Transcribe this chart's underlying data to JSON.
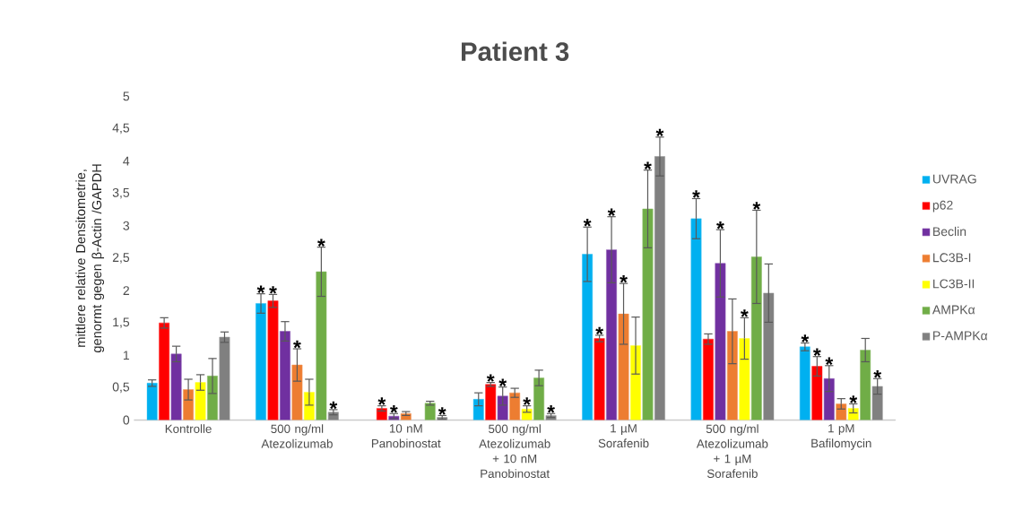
{
  "chart_data": {
    "type": "bar",
    "title": "Patient 3",
    "ylabel": "mittlere relative Densitometrie, genormt gegen β-Actin /GAPDH",
    "categories": [
      "Kontrolle",
      "500 ng/ml Atezolizumab",
      "10 nM Panobinostat",
      "500 ng/ml Atezolizumab + 10 nM Panobinostat",
      "1 µM Sorafenib",
      "500 ng/ml Atezolizumab + 1 µM Sorafenib",
      "1 pM Bafilomycin"
    ],
    "series": [
      {
        "name": "UVRAG",
        "color": "#00b0f0",
        "values": [
          0.57,
          1.8,
          null,
          0.32,
          2.56,
          3.11,
          1.13
        ],
        "errors": [
          0.05,
          0.15,
          null,
          0.1,
          0.42,
          0.31,
          0.06
        ],
        "value_labels": [
          null,
          "*",
          null,
          null,
          "*",
          "*",
          "*"
        ]
      },
      {
        "name": "p62",
        "color": "#ff0000",
        "values": [
          1.5,
          1.84,
          0.18,
          0.55,
          1.26,
          1.25,
          0.83
        ],
        "errors": [
          0.08,
          0.1,
          0.04,
          0.03,
          0.05,
          0.08,
          0.15
        ],
        "value_labels": [
          null,
          "*",
          "*",
          "*",
          "*",
          null,
          "*"
        ]
      },
      {
        "name": "Beclin",
        "color": "#7030a0",
        "values": [
          1.02,
          1.37,
          0.06,
          0.37,
          2.63,
          2.42,
          0.64
        ],
        "errors": [
          0.12,
          0.15,
          0.04,
          0.14,
          0.51,
          0.52,
          0.2
        ],
        "value_labels": [
          null,
          null,
          "*",
          "*",
          "*",
          "*",
          "*"
        ]
      },
      {
        "name": "LC3B-I",
        "color": "#ed7d31",
        "values": [
          0.47,
          0.85,
          0.1,
          0.42,
          1.64,
          1.37,
          0.25
        ],
        "errors": [
          0.16,
          0.25,
          0.03,
          0.07,
          0.47,
          0.5,
          0.08
        ],
        "value_labels": [
          null,
          "*",
          null,
          null,
          "*",
          null,
          null
        ]
      },
      {
        "name": "LC3B-II",
        "color": "#ffff00",
        "values": [
          0.58,
          0.43,
          null,
          0.17,
          1.15,
          1.26,
          0.18
        ],
        "errors": [
          0.12,
          0.2,
          null,
          0.05,
          0.44,
          0.32,
          0.07
        ],
        "value_labels": [
          null,
          null,
          null,
          "*",
          null,
          "*",
          "*"
        ]
      },
      {
        "name": "AMPKα",
        "color": "#70ad47",
        "values": [
          0.68,
          2.29,
          0.26,
          0.65,
          3.26,
          2.52,
          1.08
        ],
        "errors": [
          0.27,
          0.38,
          0.03,
          0.12,
          0.6,
          0.72,
          0.18
        ],
        "value_labels": [
          null,
          "*",
          null,
          null,
          "*",
          "*",
          null
        ]
      },
      {
        "name": "P-AMPKα",
        "color": "#808080",
        "values": [
          1.28,
          0.12,
          0.04,
          0.07,
          4.07,
          1.96,
          0.52
        ],
        "errors": [
          0.08,
          0.04,
          0.03,
          0.03,
          0.3,
          0.45,
          0.12
        ],
        "value_labels": [
          null,
          "*",
          "*",
          "*",
          "*",
          null,
          "*"
        ]
      }
    ],
    "ylim": [
      0,
      5
    ],
    "yticks": [
      0,
      {
        "value": 0.5,
        "label": "0,5"
      },
      1,
      {
        "value": 1.5,
        "label": "1,5"
      },
      2,
      {
        "value": 2.5,
        "label": "2,5"
      },
      3,
      {
        "value": 3.5,
        "label": "3,5"
      },
      4,
      {
        "value": 4.5,
        "label": "4,5"
      },
      5
    ],
    "legend": "right"
  }
}
